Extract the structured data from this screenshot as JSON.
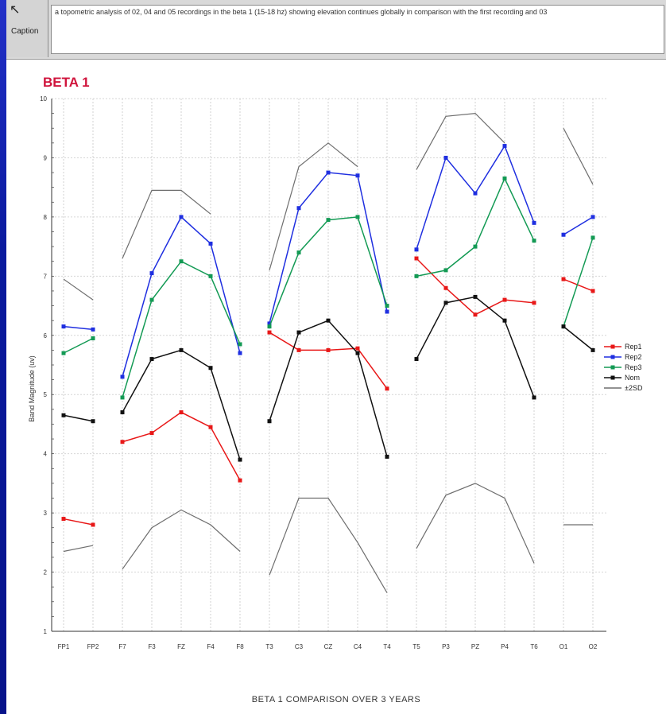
{
  "caption_panel": {
    "button_label": "Caption",
    "arrow_icon": "cursor-arrow-icon",
    "text": "a topometric analysis of 02, 04 and 05 recordings in the beta 1 (15-18 hz) showing elevation continues globally in comparison with the first recording and 03"
  },
  "bottom_caption": "BETA 1 COMPARISON OVER 3 YEARS",
  "chart_data": {
    "type": "line",
    "title": "BETA 1",
    "ylabel": "Band Magnitude (uv)",
    "xlabel": "",
    "ylim": [
      1,
      10
    ],
    "yticks": [
      1,
      2,
      3,
      4,
      5,
      6,
      7,
      8,
      9,
      10
    ],
    "grid": true,
    "legend_position": "right",
    "categories": [
      "FP1",
      "FP2",
      "F7",
      "F3",
      "FZ",
      "F4",
      "F8",
      "T3",
      "C3",
      "CZ",
      "C4",
      "T4",
      "T5",
      "P3",
      "PZ",
      "P4",
      "T6",
      "O1",
      "O2"
    ],
    "groups": [
      [
        0,
        1
      ],
      [
        2,
        3,
        4,
        5,
        6
      ],
      [
        7,
        8,
        9,
        10,
        11
      ],
      [
        12,
        13,
        14,
        15,
        16
      ],
      [
        17,
        18
      ]
    ],
    "series": [
      {
        "name": "Rep1",
        "color": "#e81818",
        "marker": true,
        "values": [
          2.9,
          2.8,
          4.2,
          4.35,
          4.7,
          4.45,
          3.55,
          6.05,
          5.75,
          5.75,
          5.78,
          5.1,
          7.3,
          6.8,
          6.35,
          6.6,
          6.55,
          6.95,
          6.75
        ]
      },
      {
        "name": "Rep2",
        "color": "#1f2fe0",
        "marker": true,
        "values": [
          6.15,
          6.1,
          5.3,
          7.05,
          8.0,
          7.55,
          5.7,
          6.2,
          8.15,
          8.75,
          8.7,
          6.4,
          7.45,
          9.0,
          8.4,
          9.2,
          7.9,
          7.7,
          8.0
        ]
      },
      {
        "name": "Rep3",
        "color": "#139a54",
        "marker": true,
        "values": [
          5.7,
          5.95,
          4.95,
          6.6,
          7.25,
          7.0,
          5.85,
          6.15,
          7.4,
          7.95,
          8.0,
          6.5,
          7.0,
          7.1,
          7.5,
          8.65,
          7.6,
          6.15,
          7.65
        ]
      },
      {
        "name": "Nom",
        "color": "#111111",
        "marker": true,
        "values": [
          4.65,
          4.55,
          4.7,
          5.6,
          5.75,
          5.45,
          3.9,
          4.55,
          6.05,
          6.25,
          5.7,
          3.95,
          5.6,
          6.55,
          6.65,
          6.25,
          4.95,
          6.15,
          5.75
        ]
      },
      {
        "name": "±2SD",
        "color": "#6e6e6e",
        "marker": false,
        "values": [
          6.95,
          6.6,
          7.3,
          8.45,
          8.45,
          8.05,
          null,
          7.1,
          8.85,
          9.25,
          8.85,
          null,
          8.8,
          9.7,
          9.75,
          9.25,
          null,
          9.5,
          8.55
        ]
      },
      {
        "name": "",
        "color": "#6e6e6e",
        "marker": false,
        "values": [
          2.35,
          2.45,
          2.05,
          2.75,
          3.05,
          2.8,
          2.35,
          1.95,
          3.25,
          3.25,
          2.5,
          1.65,
          2.4,
          3.3,
          3.5,
          3.25,
          2.15,
          2.8,
          2.8
        ]
      }
    ]
  }
}
